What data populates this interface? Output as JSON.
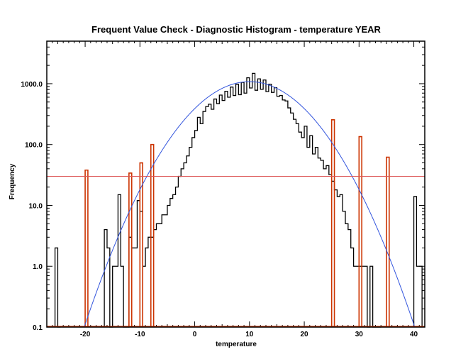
{
  "chart_data": {
    "type": "bar",
    "title": "Frequent Value Check - Diagnostic Histogram - temperature YEAR",
    "xlabel": "temperature",
    "ylabel": "Frequency",
    "xlim": [
      -27,
      42
    ],
    "ylim": [
      0.1,
      5000
    ],
    "yscale": "log",
    "xticks": [
      -20,
      -10,
      0,
      10,
      20,
      30,
      40
    ],
    "yticks": [
      0.1,
      1.0,
      10.0,
      100.0,
      1000.0
    ],
    "xtick_labels": [
      "-20",
      "-10",
      "0",
      "10",
      "20",
      "30",
      "40"
    ],
    "ytick_labels": [
      "0.1",
      "1.0",
      "10.0",
      "100.0",
      "1000.0"
    ],
    "bin_width": 0.5,
    "threshold": 30,
    "colors": {
      "histogram": "#000000",
      "fit": "#3355dd",
      "threshold": "#dd5555",
      "flagged": "#cc3300"
    },
    "series": [
      {
        "type": "step",
        "bins": [
          [
            -25.5,
            2
          ],
          [
            -25,
            0.1
          ],
          [
            -16.5,
            4
          ],
          [
            -16,
            2
          ],
          [
            -15.5,
            0.1
          ],
          [
            -15,
            1
          ],
          [
            -14.5,
            1
          ],
          [
            -14,
            15
          ],
          [
            -13.5,
            1
          ],
          [
            -13,
            0.1
          ],
          [
            -12.5,
            0.1
          ],
          [
            -12,
            3
          ],
          [
            -11.5,
            2
          ],
          [
            -11,
            2
          ],
          [
            -10.5,
            12
          ],
          [
            -10,
            8
          ],
          [
            -9.5,
            1
          ],
          [
            -9,
            2
          ],
          [
            -8.5,
            3
          ],
          [
            -8,
            3
          ],
          [
            -7.5,
            4
          ],
          [
            -7,
            5
          ],
          [
            -6.5,
            5
          ],
          [
            -6,
            7
          ],
          [
            -5.5,
            7
          ],
          [
            -5,
            10
          ],
          [
            -4.5,
            13
          ],
          [
            -4,
            15
          ],
          [
            -3.5,
            20
          ],
          [
            -3,
            30
          ],
          [
            -2.5,
            40
          ],
          [
            -2,
            50
          ],
          [
            -1.5,
            65
          ],
          [
            -1,
            90
          ],
          [
            -0.5,
            130
          ],
          [
            0,
            170
          ],
          [
            0.5,
            280
          ],
          [
            1,
            220
          ],
          [
            1.5,
            350
          ],
          [
            2,
            420
          ],
          [
            2.5,
            460
          ],
          [
            3,
            380
          ],
          [
            3.5,
            560
          ],
          [
            4,
            470
          ],
          [
            4.5,
            650
          ],
          [
            5,
            530
          ],
          [
            5.5,
            750
          ],
          [
            6,
            600
          ],
          [
            6.5,
            880
          ],
          [
            7,
            640
          ],
          [
            7.5,
            980
          ],
          [
            8,
            660
          ],
          [
            8.5,
            1050
          ],
          [
            9,
            700
          ],
          [
            9.5,
            1250
          ],
          [
            10,
            850
          ],
          [
            10.5,
            1480
          ],
          [
            11,
            780
          ],
          [
            11.5,
            1200
          ],
          [
            12,
            810
          ],
          [
            12.5,
            1150
          ],
          [
            13,
            740
          ],
          [
            13.5,
            980
          ],
          [
            14,
            720
          ],
          [
            14.5,
            860
          ],
          [
            15,
            620
          ],
          [
            15.5,
            640
          ],
          [
            16,
            540
          ],
          [
            16.5,
            520
          ],
          [
            17,
            400
          ],
          [
            17.5,
            330
          ],
          [
            18,
            260
          ],
          [
            18.5,
            220
          ],
          [
            19,
            160
          ],
          [
            19.5,
            130
          ],
          [
            20,
            200
          ],
          [
            20.5,
            90
          ],
          [
            21,
            140
          ],
          [
            21.5,
            70
          ],
          [
            22,
            90
          ],
          [
            22.5,
            60
          ],
          [
            23,
            55
          ],
          [
            23.5,
            40
          ],
          [
            24,
            45
          ],
          [
            24.5,
            32
          ],
          [
            25,
            25
          ],
          [
            25.5,
            18
          ],
          [
            26,
            14
          ],
          [
            26.5,
            15
          ],
          [
            27,
            8
          ],
          [
            27.5,
            5
          ],
          [
            28,
            4
          ],
          [
            28.5,
            2
          ],
          [
            29,
            1
          ],
          [
            29.5,
            1
          ],
          [
            30,
            1
          ],
          [
            30.5,
            1
          ],
          [
            31,
            1
          ],
          [
            31.5,
            0.1
          ],
          [
            32,
            1
          ],
          [
            32.5,
            0.1
          ],
          [
            33,
            0.1
          ],
          [
            33.5,
            0.1
          ],
          [
            40,
            14
          ],
          [
            40.5,
            1
          ],
          [
            41,
            1
          ]
        ]
      },
      {
        "type": "flagged",
        "bars": [
          {
            "x": -20,
            "value": 38
          },
          {
            "x": -12,
            "value": 34
          },
          {
            "x": -10,
            "value": 50
          },
          {
            "x": -8,
            "value": 100
          },
          {
            "x": 25,
            "value": 255
          },
          {
            "x": 30,
            "value": 135
          },
          {
            "x": 35,
            "value": 62
          }
        ]
      }
    ],
    "fit": {
      "type": "gaussian",
      "amplitude": 1080,
      "mean": 10,
      "sigma": 7.0
    }
  }
}
